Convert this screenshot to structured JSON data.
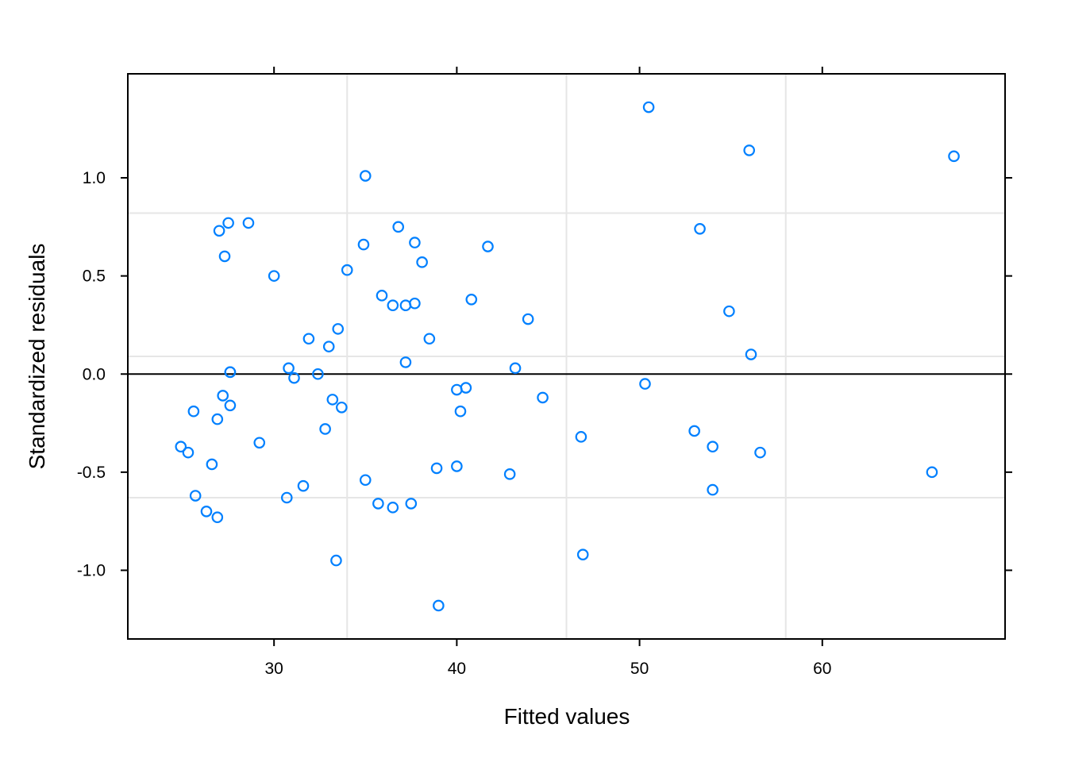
{
  "chart_data": {
    "type": "scatter",
    "xlabel": "Fitted values",
    "ylabel": "Standardized residuals",
    "xlim": [
      22,
      70
    ],
    "ylim": [
      -1.35,
      1.53
    ],
    "x_ticks": [
      30,
      40,
      50,
      60
    ],
    "x_tick_labels": [
      "30",
      "40",
      "50",
      "60"
    ],
    "y_ticks": [
      -1.0,
      -0.5,
      0.0,
      0.5,
      1.0
    ],
    "y_tick_labels": [
      "-1.0",
      "-0.5",
      "0.0",
      "0.5",
      "1.0"
    ],
    "grid": true,
    "grid_x": [
      34,
      46,
      58
    ],
    "grid_y": [
      0.82,
      0.09,
      -0.63
    ],
    "reference_line_y": 0,
    "marker_color": "#0080ff",
    "points": [
      {
        "x": 50.5,
        "y": 1.36
      },
      {
        "x": 56.0,
        "y": 1.14
      },
      {
        "x": 67.2,
        "y": 1.11
      },
      {
        "x": 35.0,
        "y": 1.01
      },
      {
        "x": 53.3,
        "y": 0.74
      },
      {
        "x": 27.5,
        "y": 0.77
      },
      {
        "x": 28.6,
        "y": 0.77
      },
      {
        "x": 27.0,
        "y": 0.73
      },
      {
        "x": 36.8,
        "y": 0.75
      },
      {
        "x": 37.7,
        "y": 0.67
      },
      {
        "x": 34.9,
        "y": 0.66
      },
      {
        "x": 41.7,
        "y": 0.65
      },
      {
        "x": 27.3,
        "y": 0.6
      },
      {
        "x": 38.1,
        "y": 0.57
      },
      {
        "x": 34.0,
        "y": 0.53
      },
      {
        "x": 30.0,
        "y": 0.5
      },
      {
        "x": 35.9,
        "y": 0.4
      },
      {
        "x": 36.5,
        "y": 0.35
      },
      {
        "x": 37.2,
        "y": 0.35
      },
      {
        "x": 37.7,
        "y": 0.36
      },
      {
        "x": 40.8,
        "y": 0.38
      },
      {
        "x": 54.9,
        "y": 0.32
      },
      {
        "x": 43.9,
        "y": 0.28
      },
      {
        "x": 33.5,
        "y": 0.23
      },
      {
        "x": 31.9,
        "y": 0.18
      },
      {
        "x": 38.5,
        "y": 0.18
      },
      {
        "x": 33.0,
        "y": 0.14
      },
      {
        "x": 56.1,
        "y": 0.1
      },
      {
        "x": 37.2,
        "y": 0.06
      },
      {
        "x": 30.8,
        "y": 0.03
      },
      {
        "x": 43.2,
        "y": 0.03
      },
      {
        "x": 27.6,
        "y": 0.01
      },
      {
        "x": 27.6,
        "y": 0.01
      },
      {
        "x": 32.4,
        "y": 0.0
      },
      {
        "x": 31.1,
        "y": -0.02
      },
      {
        "x": 50.3,
        "y": -0.05
      },
      {
        "x": 40.5,
        "y": -0.07
      },
      {
        "x": 40.0,
        "y": -0.08
      },
      {
        "x": 27.2,
        "y": -0.11
      },
      {
        "x": 44.7,
        "y": -0.12
      },
      {
        "x": 33.2,
        "y": -0.13
      },
      {
        "x": 27.6,
        "y": -0.16
      },
      {
        "x": 33.7,
        "y": -0.17
      },
      {
        "x": 25.6,
        "y": -0.19
      },
      {
        "x": 40.2,
        "y": -0.19
      },
      {
        "x": 26.9,
        "y": -0.23
      },
      {
        "x": 32.8,
        "y": -0.28
      },
      {
        "x": 53.0,
        "y": -0.29
      },
      {
        "x": 46.8,
        "y": -0.32
      },
      {
        "x": 29.2,
        "y": -0.35
      },
      {
        "x": 24.9,
        "y": -0.37
      },
      {
        "x": 54.0,
        "y": -0.37
      },
      {
        "x": 25.3,
        "y": -0.4
      },
      {
        "x": 56.6,
        "y": -0.4
      },
      {
        "x": 26.6,
        "y": -0.46
      },
      {
        "x": 40.0,
        "y": -0.47
      },
      {
        "x": 38.9,
        "y": -0.48
      },
      {
        "x": 42.9,
        "y": -0.51
      },
      {
        "x": 66.0,
        "y": -0.5
      },
      {
        "x": 35.0,
        "y": -0.54
      },
      {
        "x": 31.6,
        "y": -0.57
      },
      {
        "x": 54.0,
        "y": -0.59
      },
      {
        "x": 25.7,
        "y": -0.62
      },
      {
        "x": 30.7,
        "y": -0.63
      },
      {
        "x": 35.7,
        "y": -0.66
      },
      {
        "x": 37.5,
        "y": -0.66
      },
      {
        "x": 36.5,
        "y": -0.68
      },
      {
        "x": 26.3,
        "y": -0.7
      },
      {
        "x": 26.9,
        "y": -0.73
      },
      {
        "x": 46.9,
        "y": -0.92
      },
      {
        "x": 33.4,
        "y": -0.95
      },
      {
        "x": 39.0,
        "y": -1.18
      }
    ]
  }
}
